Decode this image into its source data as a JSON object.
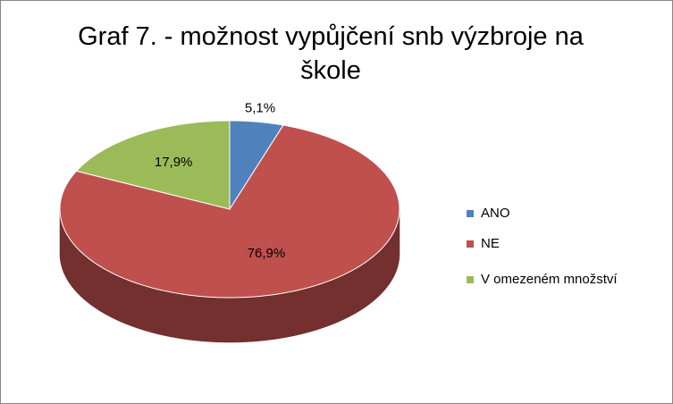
{
  "chart_data": {
    "type": "pie3d",
    "title": "Graf 7. - možnost vypůjčení snb výzbroje na škole",
    "categories": [
      "ANO",
      "NE",
      "V omezeném množství"
    ],
    "values": [
      5.1,
      76.9,
      17.9
    ],
    "value_labels": [
      "5,1%",
      "76,9%",
      "17,9%"
    ],
    "colors": [
      "#4f81bd",
      "#c0504d",
      "#9bbb59"
    ],
    "legend": "right"
  }
}
